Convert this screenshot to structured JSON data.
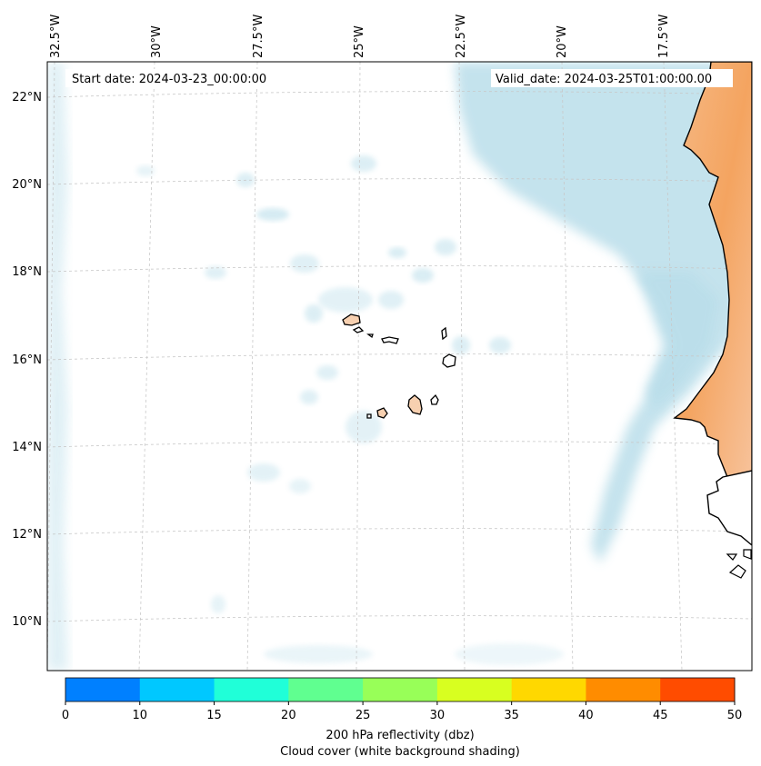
{
  "map": {
    "start_date_label": "Start date: 2024-03-23_00:00:00",
    "valid_date_label": "Valid_date: 2024-03-25T01:00:00.00",
    "lon_labels": [
      "32.5°W",
      "30°W",
      "27.5°W",
      "25°W",
      "22.5°W",
      "20°W",
      "17.5°W"
    ],
    "lat_labels": [
      "22°N",
      "20°N",
      "18°N",
      "16°N",
      "14°N",
      "12°N",
      "10°N"
    ],
    "land_color": "#f4a460",
    "cloud_color": "#add8e6"
  },
  "colorbar": {
    "ticks": [
      "0",
      "10",
      "15",
      "20",
      "25",
      "30",
      "35",
      "40",
      "45",
      "50"
    ],
    "colors": [
      "#0080ff",
      "#00c8ff",
      "#20ffd8",
      "#60ff90",
      "#98ff58",
      "#d8ff20",
      "#ffd800",
      "#ff8c00",
      "#ff4c00"
    ],
    "label_line1": "200 hPa reflectivity (dbz)",
    "label_line2": "Cloud cover (white background shading)"
  }
}
